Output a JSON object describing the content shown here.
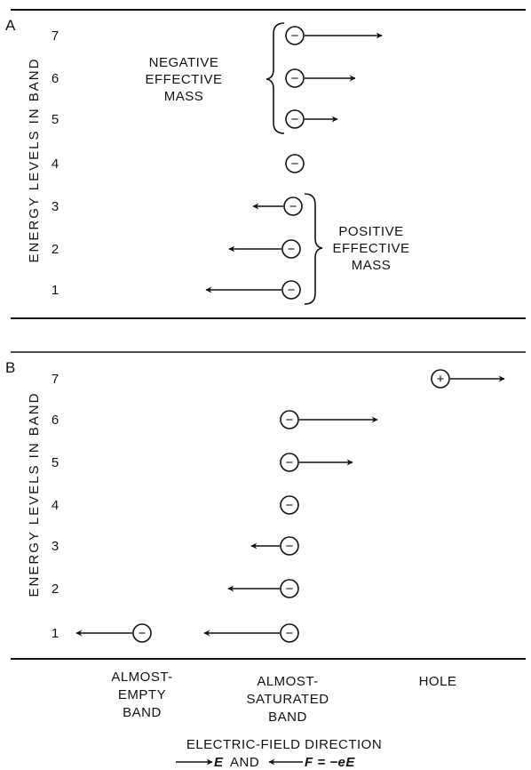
{
  "panel_a": {
    "tag": "A",
    "axis_label": "ENERGY LEVELS IN BAND",
    "levels": [
      "1",
      "2",
      "3",
      "4",
      "5",
      "6",
      "7"
    ],
    "negative_mass_label": [
      "NEGATIVE",
      "EFFECTIVE",
      "MASS"
    ],
    "positive_mass_label": [
      "POSITIVE",
      "EFFECTIVE",
      "MASS"
    ],
    "particle_symbol": "−"
  },
  "panel_b": {
    "tag": "B",
    "axis_label": "ENERGY LEVELS IN BAND",
    "levels": [
      "1",
      "2",
      "3",
      "4",
      "5",
      "6",
      "7"
    ],
    "hole_symbol": "+"
  },
  "columns": {
    "almost_empty": [
      "ALMOST-",
      "EMPTY",
      "BAND"
    ],
    "almost_saturated": [
      "ALMOST-",
      "SATURATED",
      "BAND"
    ],
    "hole": "HOLE"
  },
  "caption": {
    "line1": "ELECTRIC-FIELD DIRECTION",
    "e_symbol": "E",
    "and": "AND",
    "f_eq": "F = −eE"
  },
  "colors": {
    "ink": "#111111",
    "background": "#ffffff"
  }
}
